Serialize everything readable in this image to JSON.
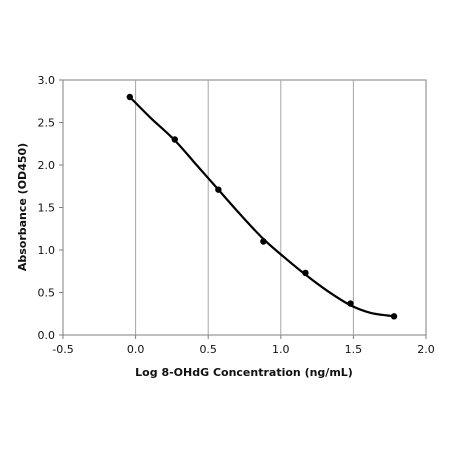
{
  "chart_data": {
    "type": "scatter",
    "title": "",
    "xlabel": "Log 8-OHdG Concentration (ng/mL)",
    "ylabel": "Absorbance (OD450)",
    "xlim": [
      -0.5,
      2.0
    ],
    "ylim": [
      0.0,
      3.0
    ],
    "x_ticks": [
      "-0.5",
      "0.0",
      "0.5",
      "1.0",
      "1.5",
      "2.0"
    ],
    "y_ticks": [
      "0.0",
      "0.5",
      "1.0",
      "1.5",
      "2.0",
      "2.5",
      "3.0"
    ],
    "grid": "vertical",
    "legend": "none",
    "marker_color": "#000000",
    "line_color": "#000000",
    "grid_color": "#a6a6a6",
    "series": [
      {
        "x": [
          -0.04,
          0.27,
          0.57,
          0.88,
          1.17,
          1.48,
          1.78
        ],
        "y": [
          2.8,
          2.3,
          1.71,
          1.1,
          0.73,
          0.37,
          0.22
        ]
      }
    ],
    "fit_curve": {
      "x": [
        -0.04,
        0.1,
        0.27,
        0.42,
        0.57,
        0.72,
        0.88,
        1.02,
        1.17,
        1.32,
        1.48,
        1.62,
        1.78
      ],
      "y": [
        2.8,
        2.56,
        2.29,
        2.0,
        1.71,
        1.42,
        1.13,
        0.92,
        0.71,
        0.52,
        0.35,
        0.26,
        0.22
      ]
    }
  }
}
